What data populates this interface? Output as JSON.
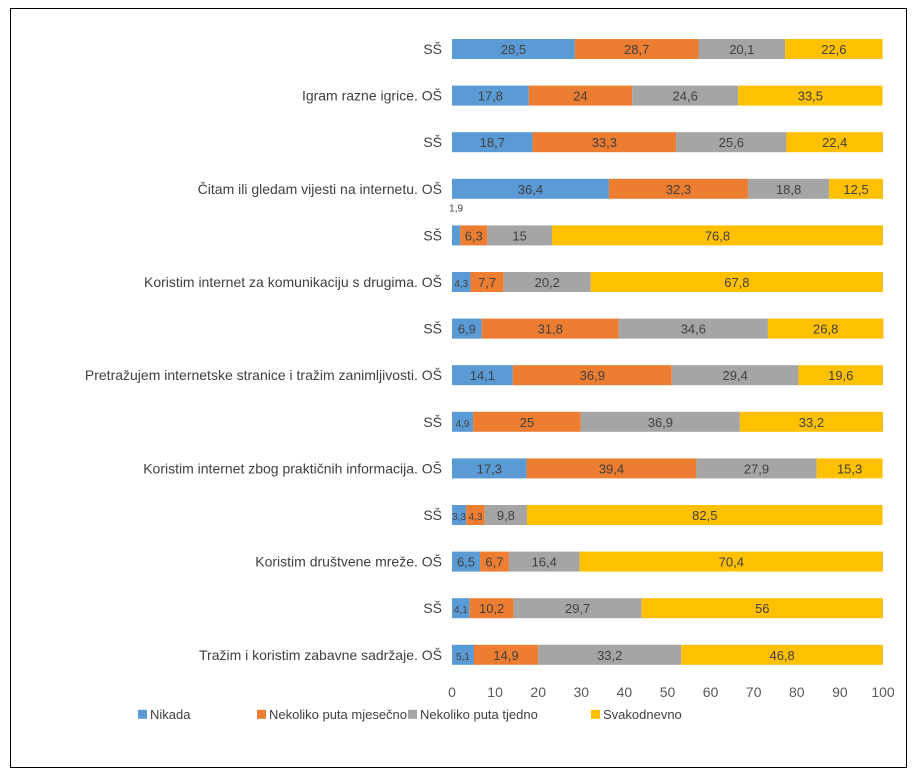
{
  "chart_data": {
    "type": "bar",
    "orientation": "horizontal",
    "stacked": true,
    "xlim": [
      0,
      100
    ],
    "xticks": [
      0,
      10,
      20,
      30,
      40,
      50,
      60,
      70,
      80,
      90,
      100
    ],
    "grid": false,
    "legend_position": "bottom",
    "categories": [
      "SŠ",
      "Igram razne igrice. OŠ",
      "SŠ",
      "Čitam ili gledam vijesti na internetu. OŠ",
      "SŠ",
      "Koristim internet za komunikaciju s drugima. OŠ",
      "SŠ",
      "Pretražujem internetske stranice i tražim zanimljivosti. OŠ",
      "SŠ",
      "Koristim internet zbog praktičnih informacija. OŠ",
      "SŠ",
      "Koristim društvene mreže. OŠ",
      "SŠ",
      "Tražim i koristim zabavne sadržaje. OŠ"
    ],
    "series": [
      {
        "name": "Nikada",
        "color": "#5B9BD5",
        "values": [
          28.5,
          17.8,
          18.7,
          36.4,
          1.9,
          4.3,
          6.9,
          14.1,
          4.9,
          17.3,
          3.3,
          6.5,
          4.1,
          5.1
        ]
      },
      {
        "name": "Nekoliko puta mjesečno",
        "color": "#ED7D31",
        "values": [
          28.7,
          24,
          33.3,
          32.3,
          6.3,
          7.7,
          31.8,
          36.9,
          25,
          39.4,
          4.3,
          6.7,
          10.2,
          14.9
        ]
      },
      {
        "name": "Nekoliko puta tjedno",
        "color": "#A5A5A5",
        "values": [
          20.1,
          24.6,
          25.6,
          18.8,
          15,
          20.2,
          34.6,
          29.4,
          36.9,
          27.9,
          9.8,
          16.4,
          29.7,
          33.2
        ]
      },
      {
        "name": "Svakodnevno",
        "color": "#FFC000",
        "values": [
          22.6,
          33.5,
          22.4,
          12.5,
          76.8,
          67.8,
          26.8,
          19.6,
          33.2,
          15.3,
          82.5,
          70.4,
          56,
          46.8
        ]
      }
    ],
    "value_labels": [
      [
        "28,5",
        "28,7",
        "20,1",
        "22,6"
      ],
      [
        "17,8",
        "24",
        "24,6",
        "33,5"
      ],
      [
        "18,7",
        "33,3",
        "25,6",
        "22,4"
      ],
      [
        "36,4",
        "32,3",
        "18,8",
        "12,5"
      ],
      [
        "1,9",
        "6,3",
        "15",
        "76,8"
      ],
      [
        "4,3",
        "7,7",
        "20,2",
        "67,8"
      ],
      [
        "6,9",
        "31,8",
        "34,6",
        "26,8"
      ],
      [
        "14,1",
        "36,9",
        "29,4",
        "19,6"
      ],
      [
        "4,9",
        "25",
        "36,9",
        "33,2"
      ],
      [
        "17,3",
        "39,4",
        "27,9",
        "15,3"
      ],
      [
        "3,3",
        "4,3",
        "9,8",
        "82,5"
      ],
      [
        "6,5",
        "6,7",
        "16,4",
        "70,4"
      ],
      [
        "4,1",
        "10,2",
        "29,7",
        "56"
      ],
      [
        "5,1",
        "14,9",
        "33,2",
        "46,8"
      ]
    ]
  }
}
